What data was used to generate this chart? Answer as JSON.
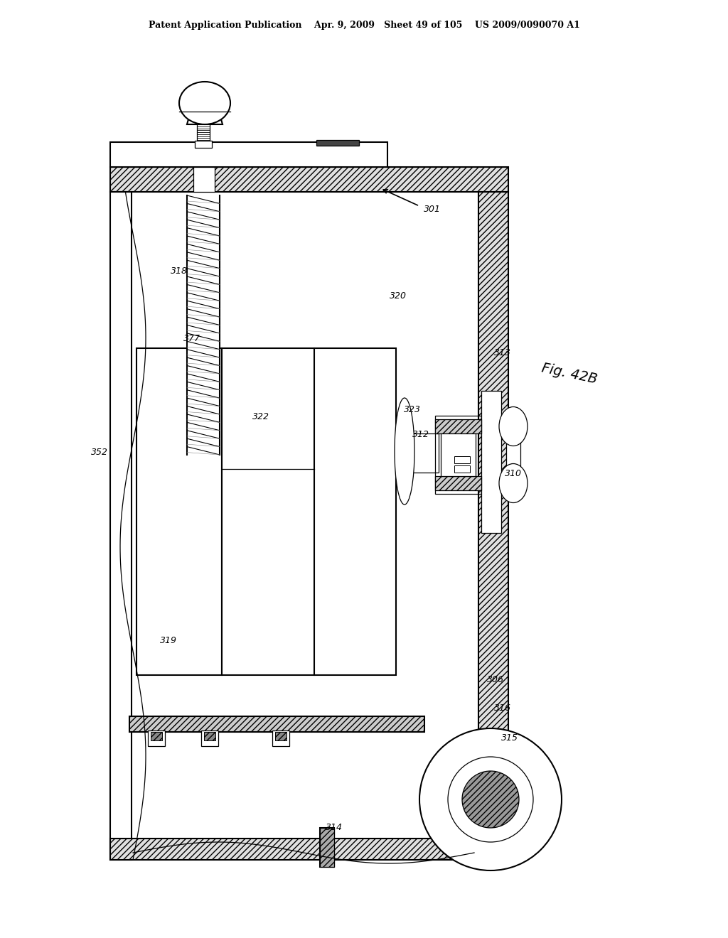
{
  "bg_color": "#ffffff",
  "header_text": "Patent Application Publication    Apr. 9, 2009   Sheet 49 of 105    US 2009/0090070 A1",
  "fig_label": "Fig. 42B"
}
